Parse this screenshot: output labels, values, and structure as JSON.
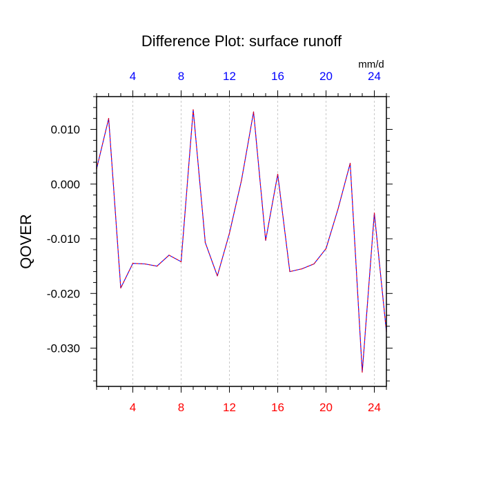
{
  "chart_data": {
    "type": "line",
    "title": "Difference Plot: surface runoff",
    "units": "mm/d",
    "ylabel": "QOVER",
    "xlabel": "",
    "xlim": [
      1,
      25
    ],
    "ylim": [
      -0.037,
      0.016
    ],
    "x_ticks": [
      "4",
      "8",
      "12",
      "16",
      "20",
      "24"
    ],
    "x_tick_values": [
      4,
      8,
      12,
      16,
      20,
      24
    ],
    "y_ticks": [
      "0.010",
      "0.000",
      "-0.010",
      "-0.020",
      "-0.030"
    ],
    "y_tick_values": [
      0.01,
      0.0,
      -0.01,
      -0.02,
      -0.03
    ],
    "grid": "vertical dashed lines at major x ticks",
    "colors": {
      "bottom_ticks": "#ff0000",
      "top_ticks": "#0000ff",
      "line_a": "#0000ff",
      "line_b": "#ff0000",
      "grid": "#c8c8c8"
    },
    "series": [
      {
        "x": [
          1,
          2,
          3,
          4,
          5,
          6,
          7,
          8,
          9,
          10,
          11,
          12,
          13,
          14,
          15,
          16,
          17,
          18,
          19,
          20,
          21,
          22,
          23,
          24,
          25
        ],
        "values": [
          0.0028,
          0.012,
          -0.019,
          -0.0145,
          -0.0146,
          -0.015,
          -0.013,
          -0.0142,
          0.0136,
          -0.0107,
          -0.0168,
          -0.009,
          0.0007,
          0.0132,
          -0.0103,
          0.0018,
          -0.016,
          -0.0155,
          -0.0146,
          -0.0118,
          -0.0045,
          0.0038,
          -0.0344,
          -0.0053,
          -0.027
        ]
      },
      {
        "x": [
          1,
          2,
          3,
          4,
          5,
          6,
          7,
          8,
          9,
          10,
          11,
          12,
          13,
          14,
          15,
          16,
          17,
          18,
          19,
          20,
          21,
          22,
          23,
          24,
          25
        ],
        "values": [
          0.0028,
          0.012,
          -0.019,
          -0.0145,
          -0.0146,
          -0.015,
          -0.013,
          -0.0142,
          0.0136,
          -0.0107,
          -0.0168,
          -0.009,
          0.0007,
          0.0132,
          -0.0103,
          0.0018,
          -0.016,
          -0.0155,
          -0.0146,
          -0.0118,
          -0.0045,
          0.0038,
          -0.0344,
          -0.0053,
          -0.027
        ]
      }
    ]
  }
}
